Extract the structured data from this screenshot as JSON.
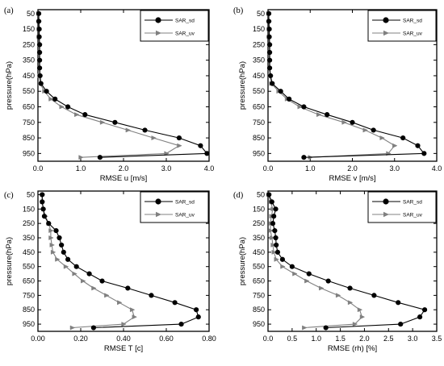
{
  "figure": {
    "ylabel": "pressure(hPa)",
    "pressure_levels": [
      "50",
      "150",
      "250",
      "350",
      "450",
      "550",
      "650",
      "750",
      "850",
      "950"
    ]
  },
  "chart_data": [
    {
      "panel": "(a)",
      "type": "line",
      "xlabel": "RMSE u [m/s]",
      "ylabel": "pressure(hPa)",
      "xlim": [
        0,
        4.0
      ],
      "xticks": [
        "0.0",
        "1.0",
        "2.0",
        "3.0",
        "4.0"
      ],
      "ylim": [
        1000,
        25
      ],
      "y_inverted": true,
      "legend_position": "top-right",
      "series": [
        {
          "name": "SAR_sd",
          "marker": "circle",
          "color": "#000000",
          "points": [
            [
              0.02,
              50
            ],
            [
              0.02,
              100
            ],
            [
              0.03,
              150
            ],
            [
              0.03,
              200
            ],
            [
              0.04,
              250
            ],
            [
              0.04,
              300
            ],
            [
              0.04,
              350
            ],
            [
              0.04,
              400
            ],
            [
              0.05,
              450
            ],
            [
              0.07,
              500
            ],
            [
              0.2,
              550
            ],
            [
              0.4,
              600
            ],
            [
              0.7,
              650
            ],
            [
              1.1,
              700
            ],
            [
              1.8,
              750
            ],
            [
              2.5,
              800
            ],
            [
              3.3,
              850
            ],
            [
              3.8,
              900
            ],
            [
              3.95,
              950
            ],
            [
              1.45,
              975
            ]
          ]
        },
        {
          "name": "SAR_uv",
          "marker": "triangle",
          "color": "#808080",
          "points": [
            [
              0.01,
              50
            ],
            [
              0.02,
              100
            ],
            [
              0.02,
              150
            ],
            [
              0.02,
              200
            ],
            [
              0.03,
              250
            ],
            [
              0.03,
              300
            ],
            [
              0.03,
              350
            ],
            [
              0.03,
              400
            ],
            [
              0.04,
              450
            ],
            [
              0.05,
              500
            ],
            [
              0.15,
              550
            ],
            [
              0.3,
              600
            ],
            [
              0.55,
              650
            ],
            [
              0.9,
              700
            ],
            [
              1.5,
              750
            ],
            [
              2.1,
              800
            ],
            [
              2.7,
              850
            ],
            [
              3.3,
              900
            ],
            [
              3.0,
              950
            ],
            [
              1.0,
              975
            ]
          ]
        }
      ]
    },
    {
      "panel": "(b)",
      "type": "line",
      "xlabel": "RMSE v [m/s]",
      "ylabel": "pressure(hPa)",
      "xlim": [
        0,
        4.0
      ],
      "xticks": [
        "0.0",
        "1.0",
        "2.0",
        "3.0",
        "4.0"
      ],
      "ylim": [
        1000,
        25
      ],
      "y_inverted": true,
      "legend_position": "top-right",
      "series": [
        {
          "name": "SAR_sd",
          "marker": "circle",
          "color": "#000000",
          "points": [
            [
              0.02,
              50
            ],
            [
              0.02,
              100
            ],
            [
              0.03,
              150
            ],
            [
              0.03,
              200
            ],
            [
              0.04,
              250
            ],
            [
              0.04,
              300
            ],
            [
              0.04,
              350
            ],
            [
              0.04,
              400
            ],
            [
              0.06,
              450
            ],
            [
              0.1,
              500
            ],
            [
              0.3,
              550
            ],
            [
              0.5,
              600
            ],
            [
              0.85,
              650
            ],
            [
              1.4,
              700
            ],
            [
              2.0,
              750
            ],
            [
              2.5,
              800
            ],
            [
              3.2,
              850
            ],
            [
              3.55,
              900
            ],
            [
              3.7,
              950
            ],
            [
              0.85,
              975
            ]
          ]
        },
        {
          "name": "SAR_uv",
          "marker": "triangle",
          "color": "#808080",
          "points": [
            [
              0.01,
              50
            ],
            [
              0.02,
              100
            ],
            [
              0.02,
              150
            ],
            [
              0.02,
              200
            ],
            [
              0.03,
              250
            ],
            [
              0.03,
              300
            ],
            [
              0.03,
              350
            ],
            [
              0.03,
              400
            ],
            [
              0.05,
              450
            ],
            [
              0.08,
              500
            ],
            [
              0.25,
              550
            ],
            [
              0.45,
              600
            ],
            [
              0.75,
              650
            ],
            [
              1.2,
              700
            ],
            [
              1.8,
              750
            ],
            [
              2.3,
              800
            ],
            [
              2.7,
              850
            ],
            [
              3.0,
              900
            ],
            [
              2.85,
              950
            ],
            [
              1.0,
              975
            ]
          ]
        }
      ]
    },
    {
      "panel": "(c)",
      "type": "line",
      "xlabel": "RMSE T [c]",
      "ylabel": "pressure(hPa)",
      "xlim": [
        0,
        0.8
      ],
      "xticks": [
        "0.00",
        "0.20",
        "0.40",
        "0.60",
        "0.80"
      ],
      "ylim": [
        1000,
        25
      ],
      "y_inverted": true,
      "legend_position": "top-right",
      "series": [
        {
          "name": "SAR_sd",
          "marker": "circle",
          "color": "#000000",
          "points": [
            [
              0.02,
              50
            ],
            [
              0.02,
              100
            ],
            [
              0.025,
              150
            ],
            [
              0.03,
              200
            ],
            [
              0.05,
              250
            ],
            [
              0.085,
              300
            ],
            [
              0.1,
              350
            ],
            [
              0.11,
              400
            ],
            [
              0.12,
              450
            ],
            [
              0.14,
              500
            ],
            [
              0.18,
              550
            ],
            [
              0.24,
              600
            ],
            [
              0.3,
              650
            ],
            [
              0.42,
              700
            ],
            [
              0.53,
              750
            ],
            [
              0.64,
              800
            ],
            [
              0.74,
              850
            ],
            [
              0.75,
              900
            ],
            [
              0.67,
              950
            ],
            [
              0.26,
              975
            ]
          ]
        },
        {
          "name": "SAR_uv",
          "marker": "triangle",
          "color": "#808080",
          "points": [
            [
              0.02,
              50
            ],
            [
              0.02,
              100
            ],
            [
              0.025,
              150
            ],
            [
              0.035,
              200
            ],
            [
              0.05,
              250
            ],
            [
              0.06,
              300
            ],
            [
              0.06,
              350
            ],
            [
              0.065,
              400
            ],
            [
              0.07,
              450
            ],
            [
              0.09,
              500
            ],
            [
              0.13,
              550
            ],
            [
              0.17,
              600
            ],
            [
              0.21,
              650
            ],
            [
              0.26,
              700
            ],
            [
              0.32,
              750
            ],
            [
              0.38,
              800
            ],
            [
              0.44,
              850
            ],
            [
              0.45,
              900
            ],
            [
              0.4,
              950
            ],
            [
              0.16,
              975
            ]
          ]
        }
      ]
    },
    {
      "panel": "(d)",
      "type": "line",
      "xlabel": "RMSE (rh) [%]",
      "ylabel": "pressure(hPa)",
      "xlim": [
        0,
        3.5
      ],
      "xticks": [
        "0.0",
        "0.5",
        "1.0",
        "1.5",
        "2.0",
        "2.5",
        "3.0",
        "3.5"
      ],
      "ylim": [
        1000,
        25
      ],
      "y_inverted": true,
      "legend_position": "top-right",
      "series": [
        {
          "name": "SAR_sd",
          "marker": "circle",
          "color": "#000000",
          "points": [
            [
              0.02,
              50
            ],
            [
              0.08,
              100
            ],
            [
              0.16,
              150
            ],
            [
              0.12,
              200
            ],
            [
              0.1,
              250
            ],
            [
              0.14,
              300
            ],
            [
              0.16,
              350
            ],
            [
              0.17,
              400
            ],
            [
              0.2,
              450
            ],
            [
              0.3,
              500
            ],
            [
              0.5,
              550
            ],
            [
              0.85,
              600
            ],
            [
              1.25,
              650
            ],
            [
              1.7,
              700
            ],
            [
              2.2,
              750
            ],
            [
              2.7,
              800
            ],
            [
              3.25,
              850
            ],
            [
              3.15,
              900
            ],
            [
              2.75,
              950
            ],
            [
              1.2,
              975
            ]
          ]
        },
        {
          "name": "SAR_uv",
          "marker": "triangle",
          "color": "#808080",
          "points": [
            [
              0.01,
              50
            ],
            [
              0.05,
              100
            ],
            [
              0.1,
              150
            ],
            [
              0.07,
              200
            ],
            [
              0.05,
              250
            ],
            [
              0.05,
              300
            ],
            [
              0.08,
              350
            ],
            [
              0.1,
              400
            ],
            [
              0.12,
              450
            ],
            [
              0.17,
              500
            ],
            [
              0.3,
              550
            ],
            [
              0.55,
              600
            ],
            [
              0.8,
              650
            ],
            [
              1.1,
              700
            ],
            [
              1.45,
              750
            ],
            [
              1.7,
              800
            ],
            [
              1.9,
              850
            ],
            [
              1.95,
              900
            ],
            [
              1.8,
              950
            ],
            [
              0.75,
              975
            ]
          ]
        }
      ]
    }
  ]
}
